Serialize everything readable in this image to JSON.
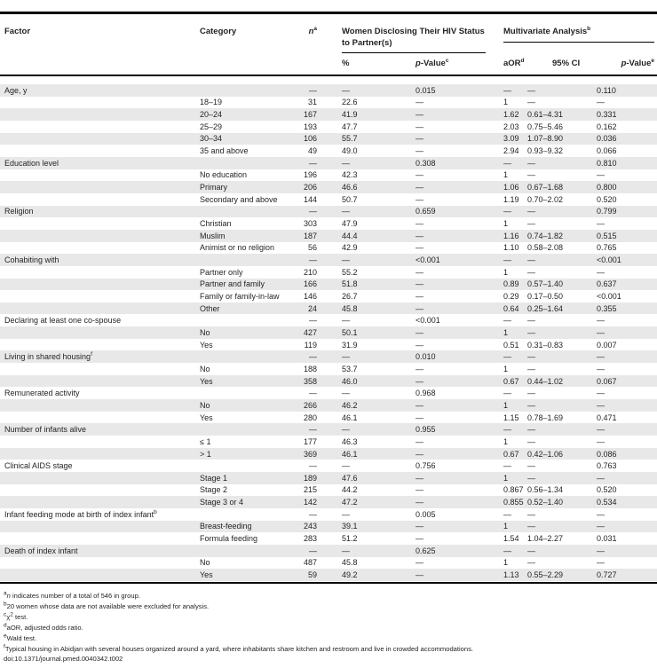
{
  "colors": {
    "band": "#e8e8e8",
    "rule": "#000000",
    "text": "#231f20"
  },
  "table": {
    "header": {
      "factor": "Factor",
      "category": "Category",
      "n": "*n*^a",
      "group1": "Women Disclosing Their HIV Status to Partner(s)",
      "group2": "Multivariate Analysis^b",
      "pct": "%",
      "pvalue_chi": "*p*-Value^c",
      "aor": "aOR^d",
      "ci": "95% CI",
      "pvalue_wald": "*p*-Value^e"
    },
    "rows": [
      [
        "Age, y",
        "",
        "—",
        "—",
        "0.015",
        "—",
        "—",
        "0.110"
      ],
      [
        "",
        "18–19",
        "31",
        "22.6",
        "—",
        "1",
        "—",
        "—"
      ],
      [
        "",
        "20–24",
        "167",
        "41.9",
        "—",
        "1.62",
        "0.61–4.31",
        "0.331"
      ],
      [
        "",
        "25–29",
        "193",
        "47.7",
        "—",
        "2.03",
        "0.75–5.46",
        "0.162"
      ],
      [
        "",
        "30–34",
        "106",
        "55.7",
        "—",
        "3.09",
        "1.07–8.90",
        "0.036"
      ],
      [
        "",
        "35 and above",
        "49",
        "49.0",
        "—",
        "2.94",
        "0.93–9.32",
        "0.066"
      ],
      [
        "Education level",
        "",
        "—",
        "—",
        "0.308",
        "—",
        "—",
        "0.810"
      ],
      [
        "",
        "No education",
        "196",
        "42.3",
        "—",
        "1",
        "—",
        "—"
      ],
      [
        "",
        "Primary",
        "206",
        "46.6",
        "—",
        "1.06",
        "0.67–1.68",
        "0.800"
      ],
      [
        "",
        "Secondary and above",
        "144",
        "50.7",
        "—",
        "1.19",
        "0.70–2.02",
        "0.520"
      ],
      [
        "Religion",
        "",
        "—",
        "—",
        "0.659",
        "—",
        "—",
        "0.799"
      ],
      [
        "",
        "Christian",
        "303",
        "47.9",
        "—",
        "1",
        "—",
        "—"
      ],
      [
        "",
        "Muslim",
        "187",
        "44.4",
        "—",
        "1.16",
        "0.74–1.82",
        "0.515"
      ],
      [
        "",
        "Animist or no religion",
        "56",
        "42.9",
        "—",
        "1.10",
        "0.58–2.08",
        "0.765"
      ],
      [
        "Cohabiting with",
        "",
        "—",
        "—",
        "<0.001",
        "—",
        "—",
        "<0.001"
      ],
      [
        "",
        "Partner only",
        "210",
        "55.2",
        "—",
        "1",
        "—",
        "—"
      ],
      [
        "",
        "Partner and family",
        "166",
        "51.8",
        "—",
        "0.89",
        "0.57–1.40",
        "0.637"
      ],
      [
        "",
        "Family or family-in-law",
        "146",
        "26.7",
        "—",
        "0.29",
        "0.17–0.50",
        "<0.001"
      ],
      [
        "",
        "Other",
        "24",
        "45.8",
        "—",
        "0.64",
        "0.25–1.64",
        "0.355"
      ],
      [
        "Declaring at least one co-spouse",
        "",
        "—",
        "—",
        "<0.001",
        "—",
        "—",
        "—"
      ],
      [
        "",
        "No",
        "427",
        "50.1",
        "—",
        "1",
        "—",
        "—"
      ],
      [
        "",
        "Yes",
        "119",
        "31.9",
        "—",
        "0.51",
        "0.31–0.83",
        "0.007"
      ],
      [
        "Living in shared housing^f",
        "",
        "—",
        "—",
        "0.010",
        "—",
        "—",
        "—"
      ],
      [
        "",
        "No",
        "188",
        "53.7",
        "—",
        "1",
        "—",
        "—"
      ],
      [
        "",
        "Yes",
        "358",
        "46.0",
        "—",
        "0.67",
        "0.44–1.02",
        "0.067"
      ],
      [
        "Remunerated activity",
        "",
        "—",
        "—",
        "0.968",
        "—",
        "—",
        "—"
      ],
      [
        "",
        "No",
        "266",
        "46.2",
        "—",
        "1",
        "—",
        "—"
      ],
      [
        "",
        "Yes",
        "280",
        "46.1",
        "—",
        "1.15",
        "0.78–1.69",
        "0.471"
      ],
      [
        "Number of infants alive",
        "",
        "—",
        "—",
        "0.955",
        "—",
        "—",
        "—"
      ],
      [
        "",
        "≤ 1",
        "177",
        "46.3",
        "—",
        "1",
        "—",
        "—"
      ],
      [
        "",
        "> 1",
        "369",
        "46.1",
        "—",
        "0.67",
        "0.42–1.06",
        "0.086"
      ],
      [
        "Clinical AIDS stage",
        "",
        "—",
        "—",
        "0.756",
        "—",
        "—",
        "0.763"
      ],
      [
        "",
        "Stage 1",
        "189",
        "47.6",
        "—",
        "1",
        "—",
        "—"
      ],
      [
        "",
        "Stage 2",
        "215",
        "44.2",
        "—",
        "0.867",
        "0.56–1.34",
        "0.520"
      ],
      [
        "",
        "Stage 3 or 4",
        "142",
        "47.2",
        "—",
        "0.855",
        "0.52–1.40",
        "0.534"
      ],
      [
        "Infant feeding mode at birth of index infant^b",
        "",
        "—",
        "—",
        "0.005",
        "—",
        "—",
        "—"
      ],
      [
        "",
        "Breast-feeding",
        "243",
        "39.1",
        "—",
        "1",
        "—",
        "—"
      ],
      [
        "",
        "Formula feeding",
        "283",
        "51.2",
        "—",
        "1.54",
        "1.04–2.27",
        "0.031"
      ],
      [
        "Death of index infant",
        "",
        "—",
        "—",
        "0.625",
        "—",
        "—",
        "—"
      ],
      [
        "",
        "No",
        "487",
        "45.8",
        "—",
        "1",
        "—",
        "—"
      ],
      [
        "",
        "Yes",
        "59",
        "49.2",
        "—",
        "1.13",
        "0.55–2.29",
        "0.727"
      ]
    ],
    "footnotes": [
      "^a*n* indicates number of a total of 546 in group.",
      "^b20 women whose data are not available were excluded for analysis.",
      "^cχ^2 test.",
      "^daOR, adjusted odds ratio.",
      "^eWald test.",
      "^fTypical housing in Abidjan with several houses organized around a yard, where inhabitants share kitchen and restroom and live in crowded accommodations."
    ],
    "doi": "doi:10.1371/journal.pmed.0040342.t002"
  }
}
